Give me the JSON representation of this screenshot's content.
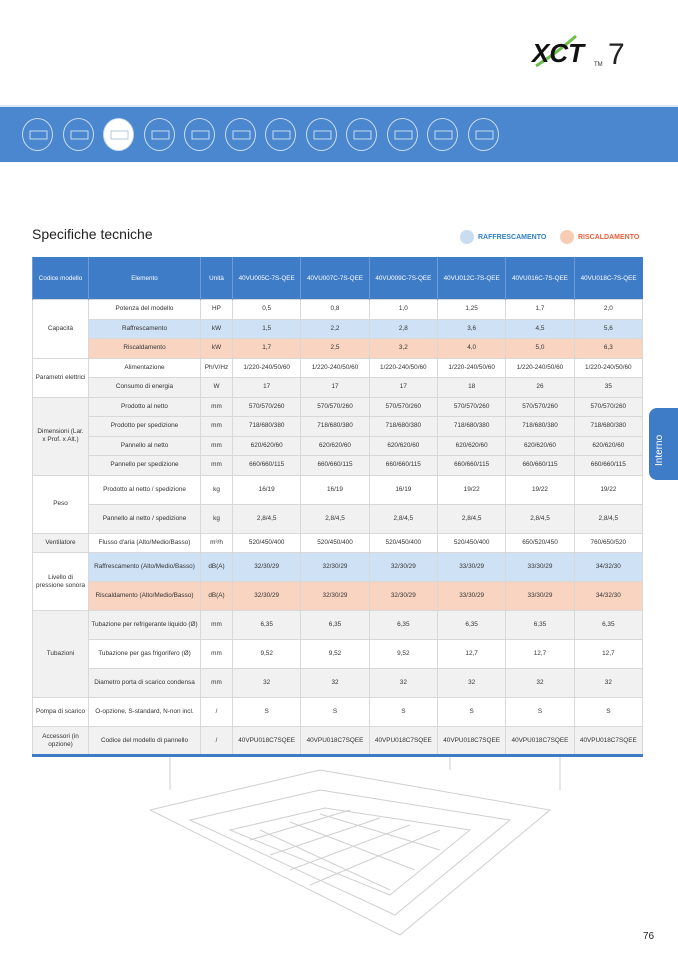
{
  "logo": {
    "text": "XCT7"
  },
  "banner": {
    "icons": [
      "cassette-unit-icon",
      "cassette-unit-icon",
      "compact-cassette-icon",
      "cassette-4way-icon",
      "duct-unit-icon",
      "duct-unit-icon",
      "duct-unit-icon",
      "wall-unit-icon",
      "floor-ceiling-icon",
      "console-icon",
      "cabinet-icon",
      "outdoor-unit-icon"
    ],
    "active_index": 2
  },
  "title": "Specifiche tecniche",
  "legend": {
    "cooling": "RAFFRESCAMENTO",
    "heating": "RISCALDAMENTO",
    "cooling_color": "#2f7fc7",
    "heating_color": "#e8603c"
  },
  "table": {
    "headers": [
      "Codice modello",
      "Elemento",
      "Unità",
      "40VU005C-7S-QEE",
      "40VU007C-7S-QEE",
      "40VU009C-7S-QEE",
      "40VU012C-7S-QEE",
      "40VU016C-7S-QEE",
      "40VU018C-7S-QEE"
    ],
    "groups": [
      {
        "name": "Capacità",
        "rows": [
          {
            "item": "Potenza del modello",
            "unit": "HP",
            "values": [
              "0,5",
              "0,8",
              "1,0",
              "1,25",
              "1,7",
              "2,0"
            ]
          },
          {
            "item": "Raffrescamento",
            "unit": "kW",
            "values": [
              "1,5",
              "2,2",
              "2,8",
              "3,6",
              "4,5",
              "5,6"
            ],
            "type": "cooling"
          },
          {
            "item": "Riscaldamento",
            "unit": "kW",
            "values": [
              "1,7",
              "2,5",
              "3,2",
              "4,0",
              "5,0",
              "6,3"
            ],
            "type": "heating"
          }
        ]
      },
      {
        "name": "Parametri elettrici",
        "rows": [
          {
            "item": "Alimentazione",
            "unit": "Ph/V/Hz",
            "values": [
              "1/220-240/50/60",
              "1/220-240/50/60",
              "1/220-240/50/60",
              "1/220-240/50/60",
              "1/220-240/50/60",
              "1/220-240/50/60"
            ]
          },
          {
            "item": "Consumo di energia",
            "unit": "W",
            "values": [
              "17",
              "17",
              "17",
              "18",
              "26",
              "35"
            ],
            "type": "grey"
          }
        ]
      },
      {
        "name": "Dimensioni (Lar. x Prof. x Alt.)",
        "rows": [
          {
            "item": "Prodotto al netto",
            "unit": "mm",
            "values": [
              "570/570/260",
              "570/570/260",
              "570/570/260",
              "570/570/260",
              "570/570/260",
              "570/570/260"
            ],
            "type": "grey"
          },
          {
            "item": "Prodotto per spedizione",
            "unit": "mm",
            "values": [
              "718/680/380",
              "718/680/380",
              "718/680/380",
              "718/680/380",
              "718/680/380",
              "718/680/380"
            ],
            "type": "grey"
          },
          {
            "item": "Pannello al netto",
            "unit": "mm",
            "values": [
              "620/620/60",
              "620/620/60",
              "620/620/60",
              "620/620/60",
              "620/620/60",
              "620/620/60"
            ],
            "type": "grey"
          },
          {
            "item": "Pannello per spedizione",
            "unit": "mm",
            "values": [
              "660/660/115",
              "660/660/115",
              "660/660/115",
              "660/660/115",
              "660/660/115",
              "660/660/115"
            ],
            "type": "grey"
          }
        ]
      },
      {
        "name": "Peso",
        "rows": [
          {
            "item": "Prodotto al netto / spedizione",
            "unit": "kg",
            "values": [
              "16/19",
              "16/19",
              "16/19",
              "19/22",
              "19/22",
              "19/22"
            ]
          },
          {
            "item": "Pannello al netto / spedizione",
            "unit": "kg",
            "values": [
              "2,8/4,5",
              "2,8/4,5",
              "2,8/4,5",
              "2,8/4,5",
              "2,8/4,5",
              "2,8/4,5"
            ],
            "type": "grey"
          }
        ]
      },
      {
        "name": "Ventilatore",
        "rows": [
          {
            "item": "Flusso d'aria (Alto/Medio/Basso)",
            "unit": "m³/h",
            "values": [
              "520/450/400",
              "520/450/400",
              "520/450/400",
              "520/450/400",
              "650/520/450",
              "760/650/520"
            ]
          }
        ]
      },
      {
        "name": "Livello di pressione sonora",
        "rows": [
          {
            "item": "Raffrescamento (Alto/Medio/Basso)",
            "unit": "dB(A)",
            "values": [
              "32/30/29",
              "32/30/29",
              "32/30/29",
              "33/30/29",
              "33/30/29",
              "34/32/30"
            ],
            "type": "cooling"
          },
          {
            "item": "Riscaldamento (Alto/Medio/Basso)",
            "unit": "dB(A)",
            "values": [
              "32/30/29",
              "32/30/29",
              "32/30/29",
              "33/30/29",
              "33/30/29",
              "34/32/30"
            ],
            "type": "heating"
          }
        ]
      },
      {
        "name": "Tubazioni",
        "rows": [
          {
            "item": "Tubazione per refrigerante liquido (Ø)",
            "unit": "mm",
            "values": [
              "6,35",
              "6,35",
              "6,35",
              "6,35",
              "6,35",
              "6,35"
            ],
            "type": "grey"
          },
          {
            "item": "Tubazione per gas frigorifero (Ø)",
            "unit": "mm",
            "values": [
              "9,52",
              "9,52",
              "9,52",
              "12,7",
              "12,7",
              "12,7"
            ]
          },
          {
            "item": "Diametro porta di scarico condensa",
            "unit": "mm",
            "values": [
              "32",
              "32",
              "32",
              "32",
              "32",
              "32"
            ],
            "type": "grey"
          }
        ]
      },
      {
        "name": "Pompa di scarico",
        "rows": [
          {
            "item": "O-opzione, S-standard, N-non incl.",
            "unit": "/",
            "values": [
              "S",
              "S",
              "S",
              "S",
              "S",
              "S"
            ]
          }
        ]
      },
      {
        "name": "Accessori (in opzione)",
        "rows": [
          {
            "item": "Codice del modello di pannello",
            "unit": "/",
            "values": [
              "40VPU018C7SQEE",
              "40VPU018C7SQEE",
              "40VPU018C7SQEE",
              "40VPU018C7SQEE",
              "40VPU018C7SQEE",
              "40VPU018C7SQEE"
            ],
            "type": "grey"
          }
        ]
      }
    ]
  },
  "side_tab": "Interno",
  "page_number": "76"
}
